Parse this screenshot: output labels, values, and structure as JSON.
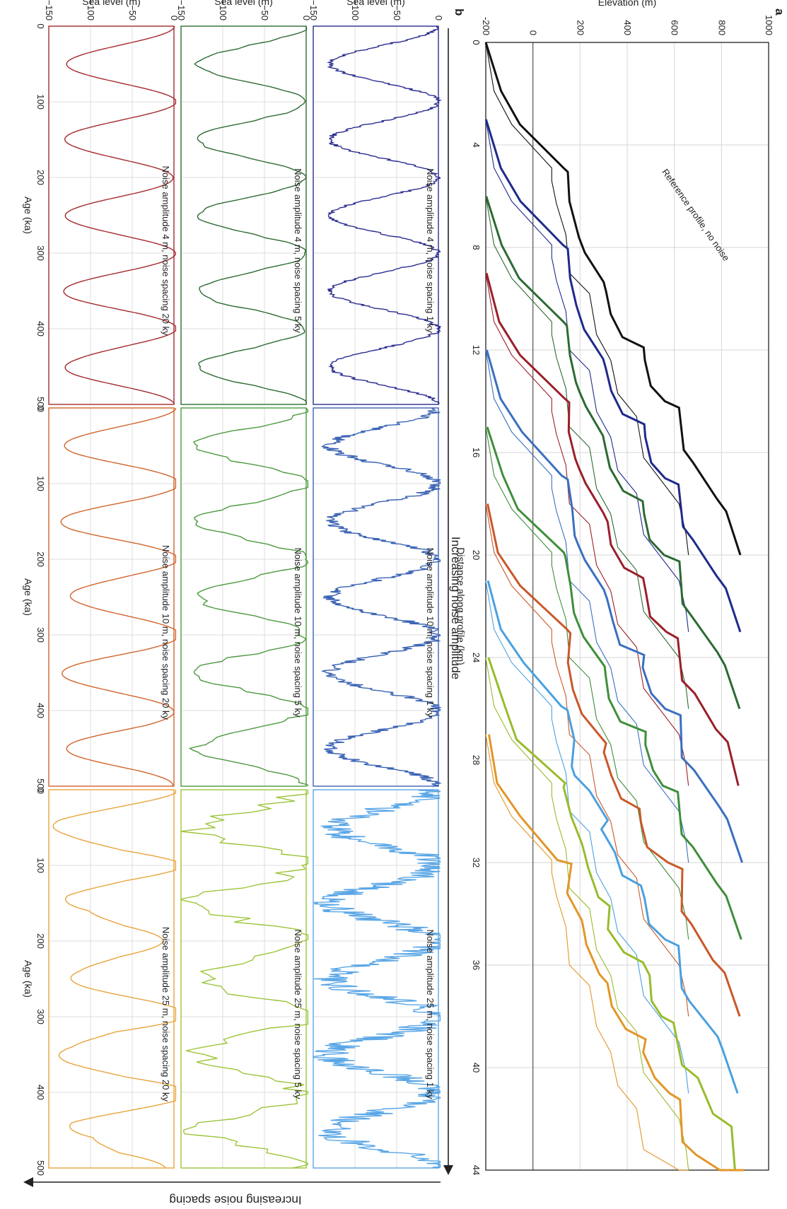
{
  "figure": {
    "panel_a_letter": "a",
    "panel_b_letter": "b",
    "increasing_noise_amplitude": "Increasing noise amplitude",
    "increasing_noise_spacing": "Increasing noise spacing"
  },
  "chart_data": [
    {
      "panel": "a",
      "type": "line",
      "xlabel": "Distance along profile (km)",
      "ylabel": "Elevation (m)",
      "xlim": [
        0,
        44
      ],
      "ylim": [
        -200,
        1000
      ],
      "xticks": [
        "0",
        "4",
        "8",
        "12",
        "16",
        "20",
        "24",
        "28",
        "32",
        "36",
        "40",
        "44"
      ],
      "yticks": [
        "-200",
        "0",
        "200",
        "400",
        "600",
        "800",
        "1000"
      ],
      "grid": true,
      "zero_line": 0,
      "annotation": "Reference profile, no noise",
      "terrace_offset_m": [
        0,
        118,
        200,
        305,
        470,
        620,
        780
      ],
      "profile_offsets_km": [
        0,
        3,
        6,
        9,
        12,
        15,
        18,
        21,
        24,
        27
      ],
      "profile_colors": [
        "#111111",
        "#1f2a8a",
        "#2c6a33",
        "#9a1f2a",
        "#3a6fc0",
        "#3f8e3a",
        "#c9582a",
        "#4aa0e0",
        "#98bc2c",
        "#e29628"
      ]
    },
    {
      "panel": "b",
      "type": "line",
      "xlabel": "Age (ka)",
      "ylabel": "Sea level (m)",
      "xlim": [
        0,
        500
      ],
      "ylim": [
        -150,
        0
      ],
      "xticks": [
        "0",
        "100",
        "200",
        "300",
        "400",
        "500"
      ],
      "yticks": [
        "−150",
        "−100",
        "−50",
        "0"
      ],
      "base_curve": {
        "period_ka": 100,
        "amplitude_m": 65,
        "mean_m": -65
      },
      "panels": [
        {
          "row": 0,
          "col": 0,
          "label": "Noise amplitude 4 m, noise spacing 1 ky",
          "noise_amplitude_m": 4,
          "noise_spacing_ky": 1,
          "color": "#2b2d8f"
        },
        {
          "row": 0,
          "col": 1,
          "label": "Noise amplitude 10 m, noise spacing 1 ky",
          "noise_amplitude_m": 10,
          "noise_spacing_ky": 1,
          "color": "#3b63b4"
        },
        {
          "row": 0,
          "col": 2,
          "label": "Noise amplitude 25 m, noise spacing 1 ky",
          "noise_amplitude_m": 25,
          "noise_spacing_ky": 1,
          "color": "#5aa6e6"
        },
        {
          "row": 1,
          "col": 0,
          "label": "Noise amplitude 4 m, noise spacing 5 ky",
          "noise_amplitude_m": 4,
          "noise_spacing_ky": 5,
          "color": "#2d6b33"
        },
        {
          "row": 1,
          "col": 1,
          "label": "Noise amplitude 10 m, noise spacing 5 ky",
          "noise_amplitude_m": 10,
          "noise_spacing_ky": 5,
          "color": "#4c9a3f"
        },
        {
          "row": 1,
          "col": 2,
          "label": "Noise amplitude 25 m, noise spacing 5 ky",
          "noise_amplitude_m": 25,
          "noise_spacing_ky": 5,
          "color": "#9cc43a"
        },
        {
          "row": 2,
          "col": 0,
          "label": "Noise amplitude 4 m, noise spacing 20 ky",
          "noise_amplitude_m": 4,
          "noise_spacing_ky": 20,
          "color": "#a32a2e"
        },
        {
          "row": 2,
          "col": 1,
          "label": "Noise amplitude 10 m, noise spacing 20 ky",
          "noise_amplitude_m": 10,
          "noise_spacing_ky": 20,
          "color": "#d0642c"
        },
        {
          "row": 2,
          "col": 2,
          "label": "Noise amplitude 25 m, noise spacing 20 ky",
          "noise_amplitude_m": 25,
          "noise_spacing_ky": 20,
          "color": "#e8a43c"
        }
      ]
    }
  ]
}
